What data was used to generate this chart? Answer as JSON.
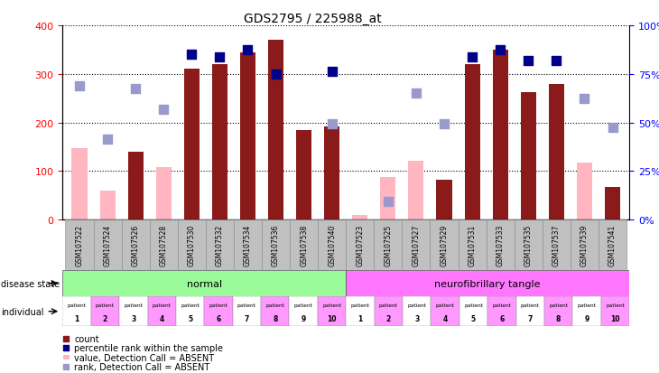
{
  "title": "GDS2795 / 225988_at",
  "samples": [
    "GSM107522",
    "GSM107524",
    "GSM107526",
    "GSM107528",
    "GSM107530",
    "GSM107532",
    "GSM107534",
    "GSM107536",
    "GSM107538",
    "GSM107540",
    "GSM107523",
    "GSM107525",
    "GSM107527",
    "GSM107529",
    "GSM107531",
    "GSM107533",
    "GSM107535",
    "GSM107537",
    "GSM107539",
    "GSM107541"
  ],
  "count_values": [
    0,
    0,
    140,
    0,
    310,
    320,
    345,
    370,
    185,
    192,
    0,
    0,
    0,
    83,
    320,
    350,
    263,
    280,
    0,
    68
  ],
  "count_absent": [
    true,
    true,
    false,
    true,
    false,
    false,
    false,
    false,
    false,
    false,
    true,
    true,
    true,
    false,
    false,
    false,
    false,
    false,
    true,
    false
  ],
  "absent_values": [
    148,
    60,
    0,
    108,
    0,
    0,
    0,
    0,
    0,
    0,
    10,
    88,
    122,
    0,
    0,
    0,
    0,
    0,
    118,
    0
  ],
  "percentile_present": [
    null,
    null,
    null,
    null,
    340,
    335,
    350,
    300,
    null,
    305,
    null,
    null,
    null,
    null,
    335,
    350,
    328,
    328,
    null,
    null
  ],
  "percentile_absent": [
    275,
    165,
    270,
    228,
    null,
    null,
    null,
    null,
    null,
    197,
    null,
    38,
    260,
    197,
    null,
    null,
    null,
    null,
    250,
    190
  ],
  "bar_color_present": "#8B1A1A",
  "bar_color_absent": "#FFB6C1",
  "percentile_color_present": "#00008B",
  "percentile_color_absent": "#9999CC",
  "normal_color": "#98FB98",
  "tangle_color": "#FF77FF",
  "ylim_left": [
    0,
    400
  ],
  "yticks_left": [
    0,
    100,
    200,
    300,
    400
  ],
  "yticks_right": [
    0,
    25,
    50,
    75,
    100
  ],
  "yticklabels_right": [
    "0%",
    "25%",
    "50%",
    "75%",
    "100%"
  ]
}
